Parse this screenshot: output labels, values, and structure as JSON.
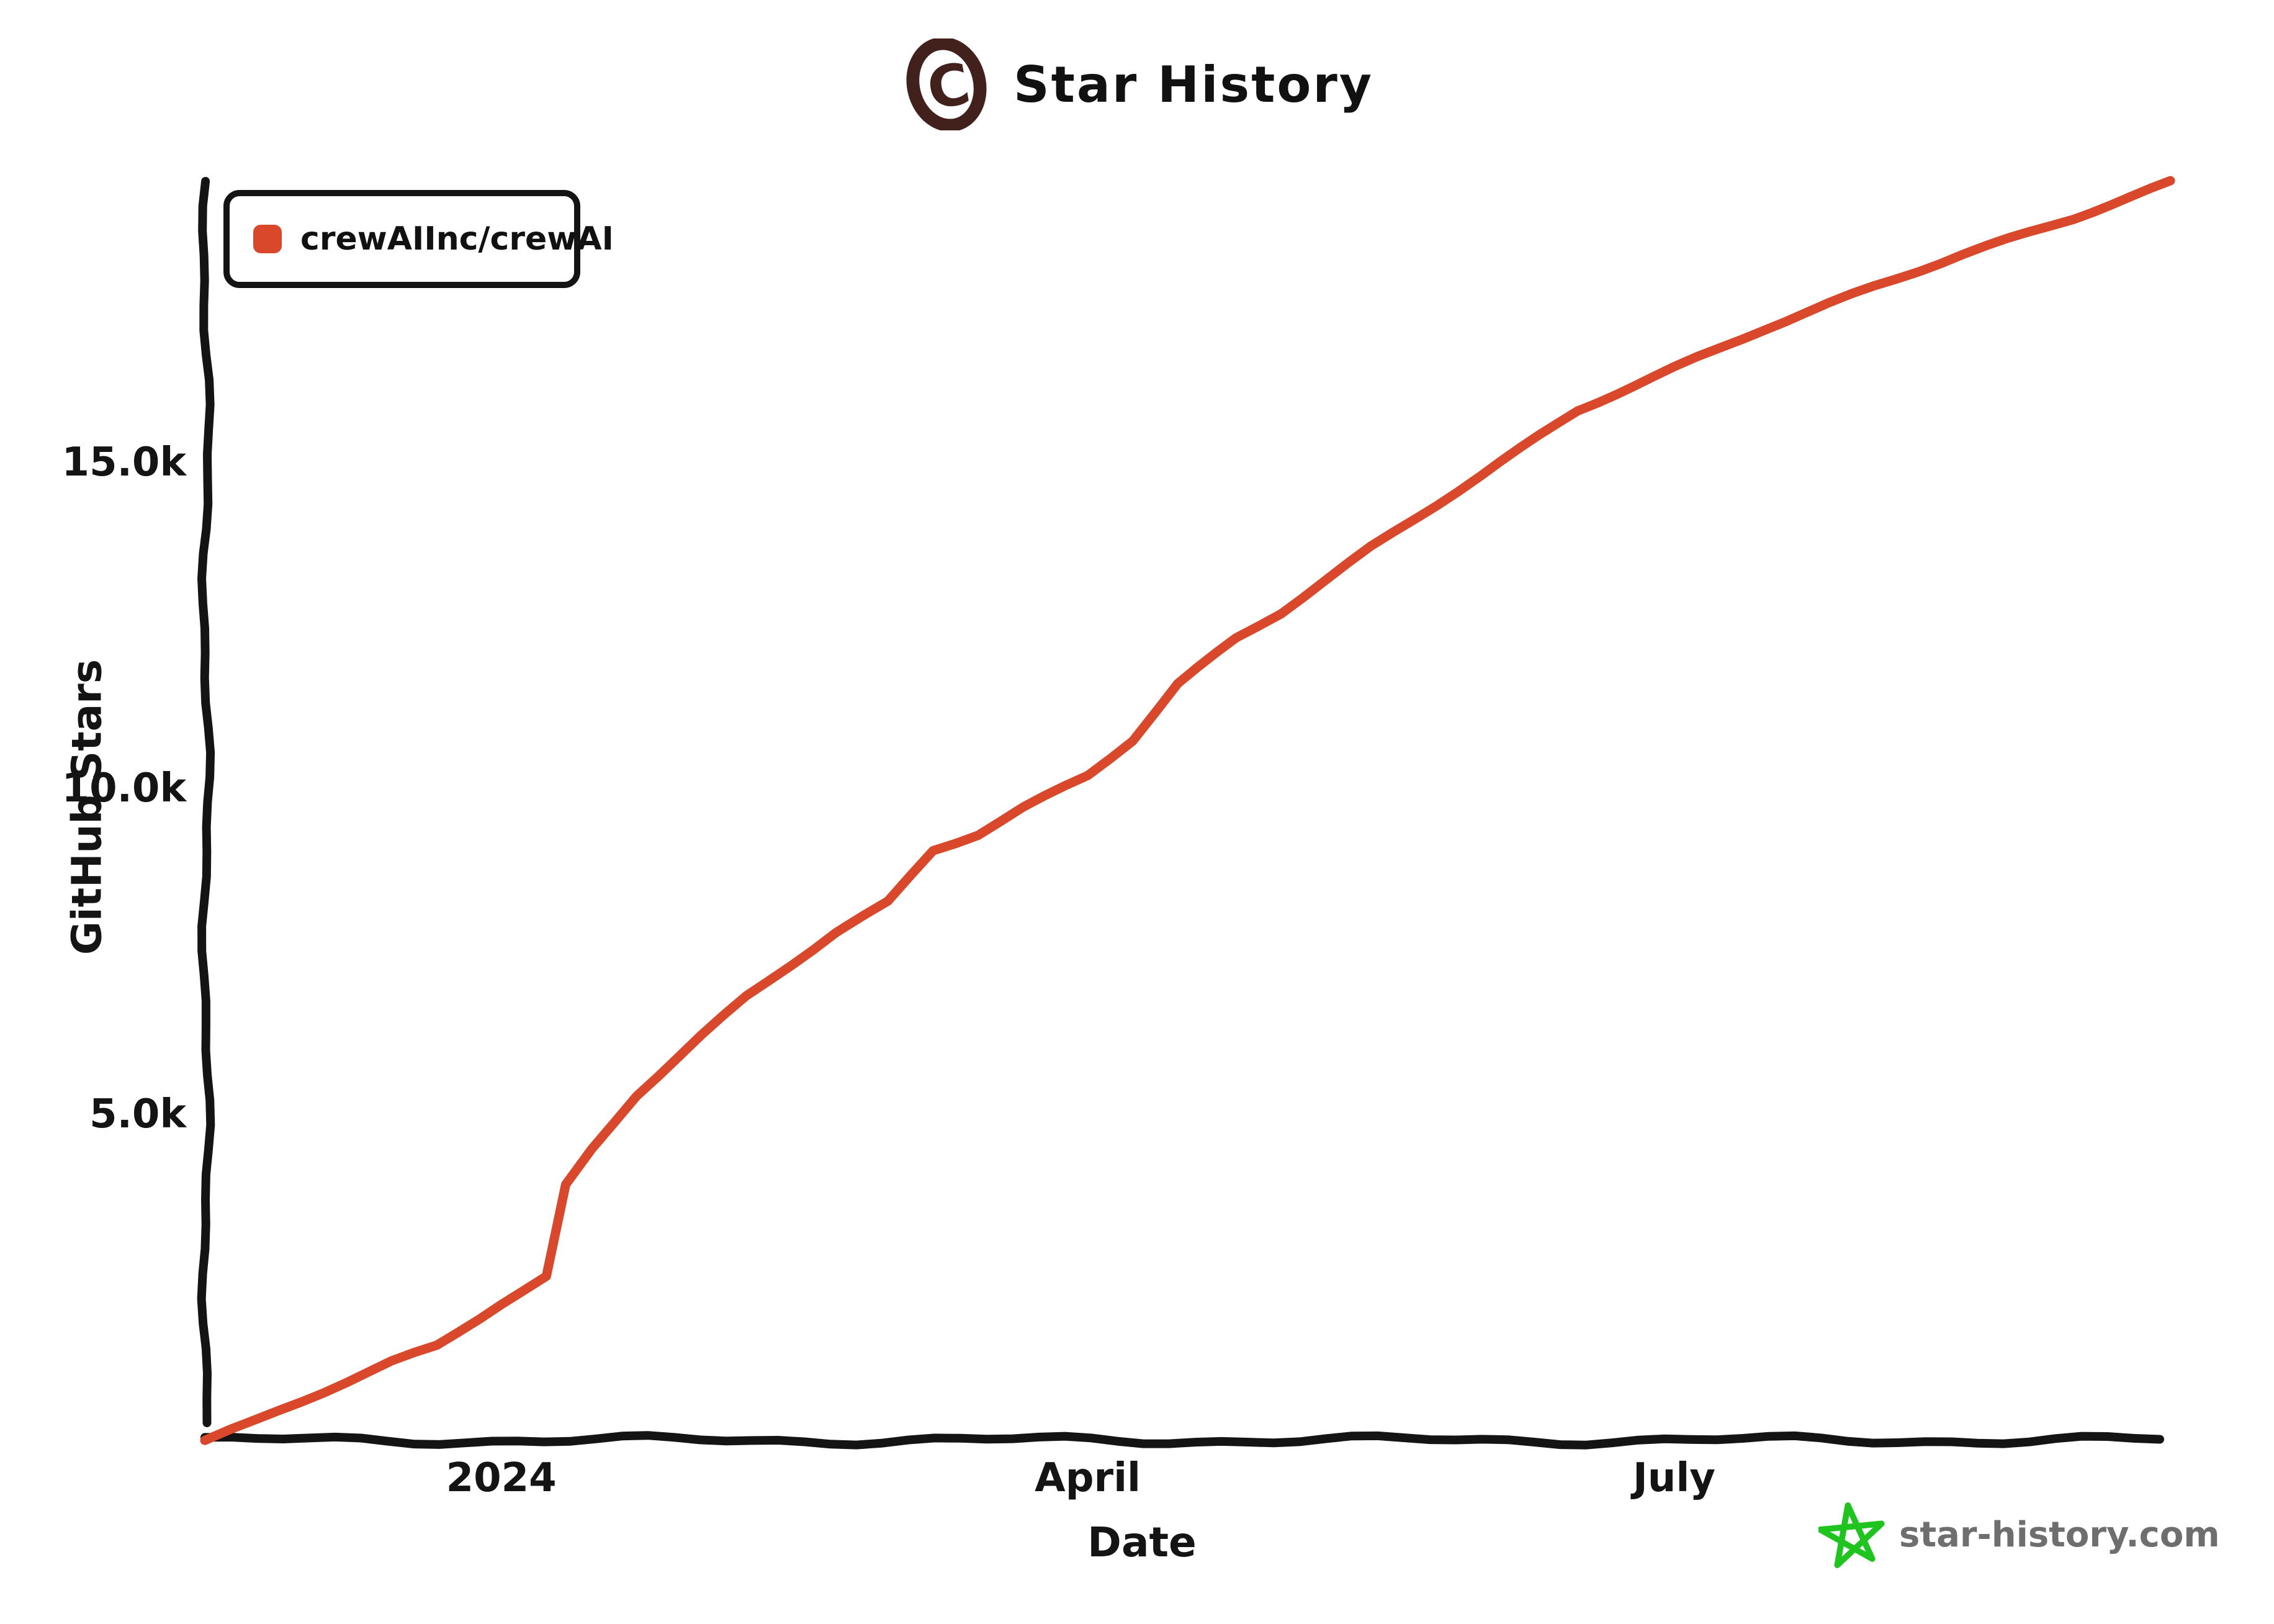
{
  "title": {
    "text": "Star History",
    "logo_icon": "star-history-c-logo"
  },
  "legend": {
    "position": "top-left",
    "items": [
      {
        "label": "crewAIInc/crewAI",
        "color": "#d9482b"
      }
    ]
  },
  "axes": {
    "y": {
      "label": "GitHub Stars",
      "ticks": [
        {
          "value": 5000,
          "label": "5.0k"
        },
        {
          "value": 10000,
          "label": "10.0k"
        },
        {
          "value": 15000,
          "label": "15.0k"
        }
      ]
    },
    "x": {
      "label": "Date",
      "ticks": [
        {
          "date": "2024-01-01",
          "label": "2024"
        },
        {
          "date": "2024-04-01",
          "label": "April"
        },
        {
          "date": "2024-07-01",
          "label": "July"
        }
      ]
    }
  },
  "watermark": {
    "text": "star-history.com",
    "star_icon": "green-star",
    "star_color": "#1fc41f",
    "text_color": "#6e6e6e"
  },
  "colors": {
    "series_red": "#d9482b",
    "axis_black": "#141414",
    "logo_maroon": "#42201b",
    "watermark_green": "#1fc41f",
    "watermark_gray": "#6e6e6e",
    "background": "#ffffff"
  },
  "chart_data": {
    "type": "line",
    "title": "Star History",
    "xlabel": "Date",
    "ylabel": "GitHub Stars",
    "grid": false,
    "legend_position": "top-left",
    "style": "hand-drawn-xkcd",
    "x_range": [
      "2023-11-16",
      "2024-09-16"
    ],
    "ylim": [
      0,
      19800
    ],
    "y_tick_values": [
      5000,
      10000,
      15000
    ],
    "series": [
      {
        "name": "crewAIInc/crewAI",
        "color": "#d9482b",
        "points": [
          [
            "2023-11-16",
            0
          ],
          [
            "2023-11-24",
            300
          ],
          [
            "2023-12-01",
            600
          ],
          [
            "2023-12-08",
            900
          ],
          [
            "2023-12-15",
            1200
          ],
          [
            "2023-12-22",
            1450
          ],
          [
            "2024-01-01",
            2100
          ],
          [
            "2024-01-08",
            2500
          ],
          [
            "2024-01-11",
            3900
          ],
          [
            "2024-01-15",
            4450
          ],
          [
            "2024-01-22",
            5300
          ],
          [
            "2024-02-01",
            6200
          ],
          [
            "2024-02-08",
            6800
          ],
          [
            "2024-02-15",
            7300
          ],
          [
            "2024-02-22",
            7800
          ],
          [
            "2024-03-01",
            8250
          ],
          [
            "2024-03-08",
            9050
          ],
          [
            "2024-03-15",
            9300
          ],
          [
            "2024-03-22",
            9700
          ],
          [
            "2024-04-01",
            10200
          ],
          [
            "2024-04-08",
            10750
          ],
          [
            "2024-04-15",
            11600
          ],
          [
            "2024-04-24",
            12300
          ],
          [
            "2024-05-01",
            12700
          ],
          [
            "2024-05-15",
            13700
          ],
          [
            "2024-06-01",
            14800
          ],
          [
            "2024-06-16",
            15800
          ],
          [
            "2024-07-01",
            16450
          ],
          [
            "2024-07-15",
            17050
          ],
          [
            "2024-08-01",
            17700
          ],
          [
            "2024-08-15",
            18200
          ],
          [
            "2024-09-01",
            18750
          ],
          [
            "2024-09-16",
            19300
          ]
        ]
      }
    ]
  }
}
